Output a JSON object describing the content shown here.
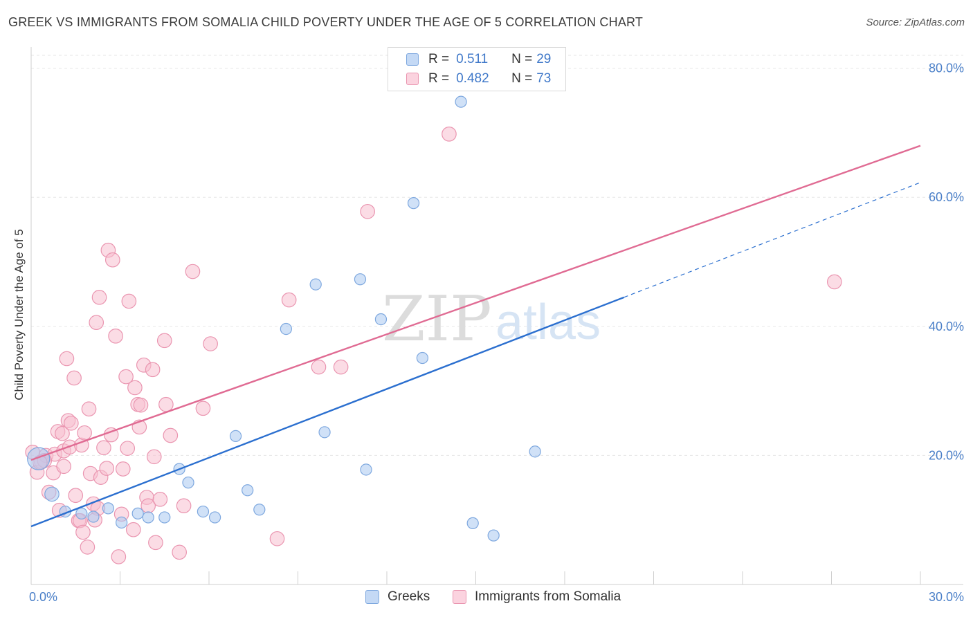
{
  "title": "GREEK VS IMMIGRANTS FROM SOMALIA CHILD POVERTY UNDER THE AGE OF 5 CORRELATION CHART",
  "source": "Source: ZipAtlas.com",
  "watermark": {
    "zip": "ZIP",
    "atlas": "atlas"
  },
  "legend": [
    {
      "r_label": "R =",
      "r_value": "0.511",
      "n_label": "N =",
      "n_value": "29",
      "color": "#a9c8f0",
      "border": "#7ea8df"
    },
    {
      "r_label": "R =",
      "r_value": "0.482",
      "n_label": "N =",
      "n_value": "73",
      "color": "#f7bfd0",
      "border": "#ea95b0"
    }
  ],
  "chart_data": {
    "type": "scatter",
    "title": "GREEK VS IMMIGRANTS FROM SOMALIA CHILD POVERTY UNDER THE AGE OF 5 CORRELATION CHART",
    "xlabel": "",
    "ylabel": "Child Poverty Under the Age of 5",
    "xlim": [
      0,
      30
    ],
    "ylim": [
      0,
      82
    ],
    "x_tick_labels": [
      "0.0%",
      "30.0%"
    ],
    "y_ticks": [
      20,
      40,
      60,
      80
    ],
    "y_tick_labels": [
      "20.0%",
      "40.0%",
      "60.0%",
      "80.0%"
    ],
    "grid": true,
    "legend_position": "top-center",
    "series": [
      {
        "name": "Greeks",
        "color": "#7ea8df",
        "fill": "#a9c8f0",
        "line_color": "#2b6fcf",
        "trend": {
          "x0": 0,
          "y0": 9.0,
          "x1": 20,
          "y1": 44.5,
          "dashed_to_x": 30,
          "dashed_to_y": 62.3
        },
        "points": [
          [
            0.25,
            19.5
          ],
          [
            0.7,
            14.0
          ],
          [
            1.15,
            11.3
          ],
          [
            1.7,
            11.0
          ],
          [
            2.1,
            10.5
          ],
          [
            2.6,
            11.8
          ],
          [
            3.05,
            9.6
          ],
          [
            3.6,
            11.0
          ],
          [
            3.95,
            10.4
          ],
          [
            4.5,
            10.4
          ],
          [
            5.0,
            17.9
          ],
          [
            5.3,
            15.8
          ],
          [
            5.8,
            11.3
          ],
          [
            6.2,
            10.4
          ],
          [
            6.9,
            23.0
          ],
          [
            7.3,
            14.6
          ],
          [
            7.7,
            11.6
          ],
          [
            8.6,
            39.6
          ],
          [
            9.6,
            46.5
          ],
          [
            9.9,
            23.6
          ],
          [
            11.1,
            47.3
          ],
          [
            11.3,
            17.8
          ],
          [
            11.8,
            41.1
          ],
          [
            12.9,
            59.1
          ],
          [
            13.2,
            35.1
          ],
          [
            14.5,
            74.8
          ],
          [
            14.9,
            9.5
          ],
          [
            15.6,
            7.6
          ],
          [
            17.0,
            20.6
          ]
        ],
        "sizes": [
          22,
          14,
          11,
          11,
          11,
          11,
          11,
          11,
          11,
          11,
          11,
          11,
          11,
          11,
          11,
          11,
          11,
          11,
          11,
          11,
          11,
          11,
          11,
          11,
          11,
          11,
          11,
          11,
          11
        ]
      },
      {
        "name": "Immigrants from Somalia",
        "color": "#ea95b0",
        "fill": "#f7bfd0",
        "line_color": "#e06b93",
        "trend": {
          "x0": 0,
          "y0": 19.3,
          "x1": 30,
          "y1": 68.0
        },
        "points": [
          [
            0.05,
            20.5
          ],
          [
            0.2,
            17.4
          ],
          [
            0.35,
            19.0
          ],
          [
            0.5,
            20.0
          ],
          [
            0.6,
            14.3
          ],
          [
            0.75,
            17.3
          ],
          [
            0.8,
            20.2
          ],
          [
            0.9,
            23.7
          ],
          [
            0.95,
            11.5
          ],
          [
            1.1,
            18.3
          ],
          [
            1.1,
            20.7
          ],
          [
            1.05,
            23.4
          ],
          [
            1.2,
            35.0
          ],
          [
            1.3,
            21.3
          ],
          [
            1.25,
            25.4
          ],
          [
            1.35,
            25.0
          ],
          [
            1.45,
            32.0
          ],
          [
            1.5,
            13.8
          ],
          [
            1.6,
            9.9
          ],
          [
            1.65,
            9.9
          ],
          [
            1.7,
            21.6
          ],
          [
            1.75,
            8.1
          ],
          [
            1.8,
            23.5
          ],
          [
            1.9,
            5.8
          ],
          [
            1.95,
            27.2
          ],
          [
            2.0,
            17.2
          ],
          [
            2.1,
            12.5
          ],
          [
            2.2,
            40.6
          ],
          [
            2.25,
            11.8
          ],
          [
            2.3,
            44.5
          ],
          [
            2.35,
            16.6
          ],
          [
            2.45,
            21.2
          ],
          [
            2.55,
            18.0
          ],
          [
            2.6,
            51.8
          ],
          [
            2.7,
            23.2
          ],
          [
            2.75,
            50.3
          ],
          [
            2.85,
            38.5
          ],
          [
            2.95,
            4.3
          ],
          [
            3.05,
            10.9
          ],
          [
            3.1,
            17.9
          ],
          [
            3.2,
            32.2
          ],
          [
            3.25,
            21.1
          ],
          [
            3.3,
            43.9
          ],
          [
            3.45,
            8.5
          ],
          [
            3.5,
            30.5
          ],
          [
            3.6,
            27.9
          ],
          [
            3.65,
            24.4
          ],
          [
            3.7,
            27.8
          ],
          [
            3.8,
            34.0
          ],
          [
            3.9,
            13.5
          ],
          [
            3.95,
            12.2
          ],
          [
            4.1,
            33.3
          ],
          [
            4.15,
            19.8
          ],
          [
            4.2,
            6.5
          ],
          [
            4.35,
            13.2
          ],
          [
            4.5,
            37.8
          ],
          [
            4.55,
            27.9
          ],
          [
            4.7,
            23.1
          ],
          [
            5.0,
            5.0
          ],
          [
            5.15,
            12.2
          ],
          [
            5.45,
            48.5
          ],
          [
            5.8,
            27.3
          ],
          [
            6.05,
            37.3
          ],
          [
            8.3,
            7.1
          ],
          [
            8.7,
            44.1
          ],
          [
            9.7,
            33.7
          ],
          [
            10.45,
            33.7
          ],
          [
            11.35,
            57.8
          ],
          [
            14.1,
            69.8
          ],
          [
            27.1,
            46.9
          ],
          [
            0.45,
            19.2
          ],
          [
            2.15,
            10.0
          ],
          [
            0.3,
            18.9
          ]
        ],
        "sizes": [
          14
        ]
      }
    ]
  }
}
